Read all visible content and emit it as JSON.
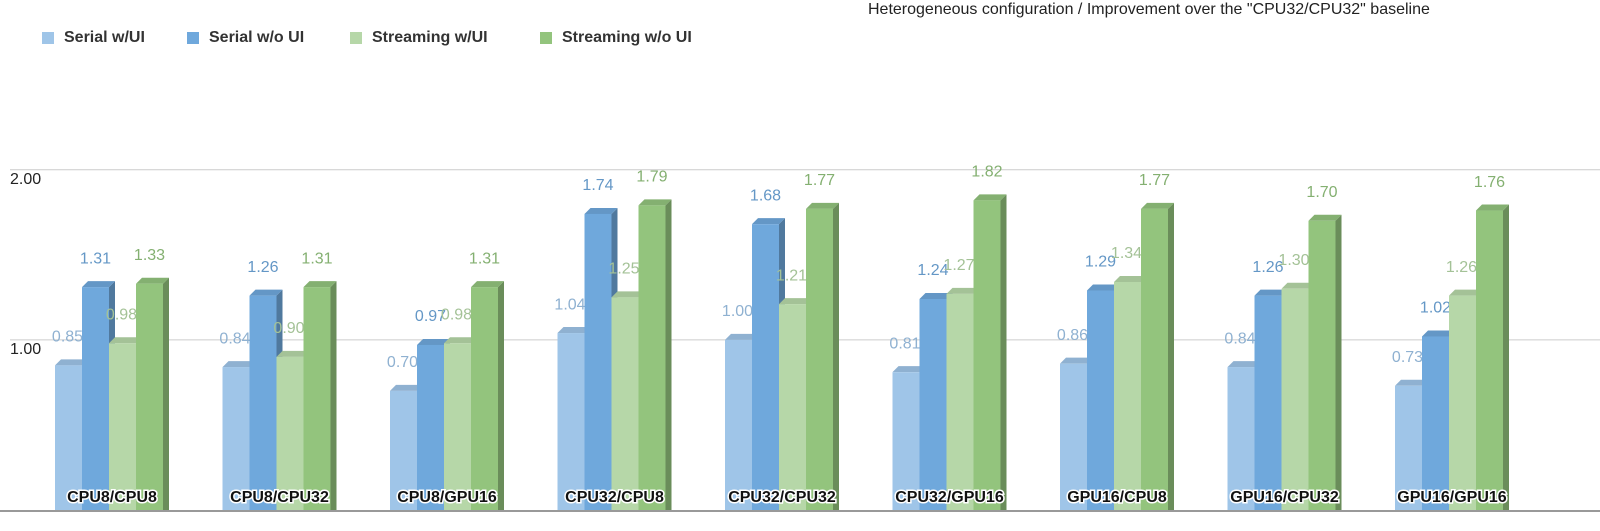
{
  "chart_data": {
    "type": "bar",
    "title": "Heterogeneous configuration / Improvement over the \"CPU32/CPU32\" baseline",
    "categories": [
      "CPU8/CPU8",
      "CPU8/CPU32",
      "CPU8/GPU16",
      "CPU32/CPU8",
      "CPU32/CPU32",
      "CPU32/GPU16",
      "GPU16/CPU8",
      "GPU16/CPU32",
      "GPU16/GPU16"
    ],
    "series": [
      {
        "name": "Serial w/UI",
        "color": "#9fc5e8",
        "values": [
          0.85,
          0.84,
          0.7,
          1.04,
          1.0,
          0.81,
          0.86,
          0.84,
          0.73
        ],
        "value_labels": [
          "0.85",
          "0.84",
          "0.70",
          "1.04",
          "1.00",
          "0.81",
          "0.86",
          "0.84",
          "0.73"
        ]
      },
      {
        "name": "Serial w/o UI",
        "color": "#6fa8dc",
        "values": [
          1.31,
          1.26,
          0.97,
          1.74,
          1.68,
          1.24,
          1.29,
          1.26,
          1.02
        ],
        "value_labels": [
          "1.31",
          "1.26",
          "0.97",
          "1.74",
          "1.68",
          "1.24",
          "1.29",
          "1.26",
          "1.02"
        ]
      },
      {
        "name": "Streaming w/UI",
        "color": "#b6d7a8",
        "values": [
          0.98,
          0.9,
          0.98,
          1.25,
          1.21,
          1.27,
          1.34,
          1.3,
          1.26
        ],
        "value_labels": [
          "0.98",
          "0.90",
          "0.98",
          "1.25",
          "1.21",
          "1.27",
          "1.34",
          "1.30",
          "1.26"
        ]
      },
      {
        "name": "Streaming w/o UI",
        "color": "#93c47d",
        "values": [
          1.33,
          1.31,
          1.31,
          1.79,
          1.77,
          1.82,
          1.77,
          1.7,
          1.76
        ],
        "value_labels": [
          "1.33",
          "1.31",
          "1.31",
          "1.79",
          "1.77",
          "1.82",
          "1.77",
          "1.70",
          "1.76"
        ]
      }
    ],
    "ylim": [
      0,
      2.68
    ],
    "yticks": [
      {
        "value": 1,
        "label": "1.00"
      },
      {
        "value": 2,
        "label": "2.00"
      }
    ],
    "grid": true
  }
}
